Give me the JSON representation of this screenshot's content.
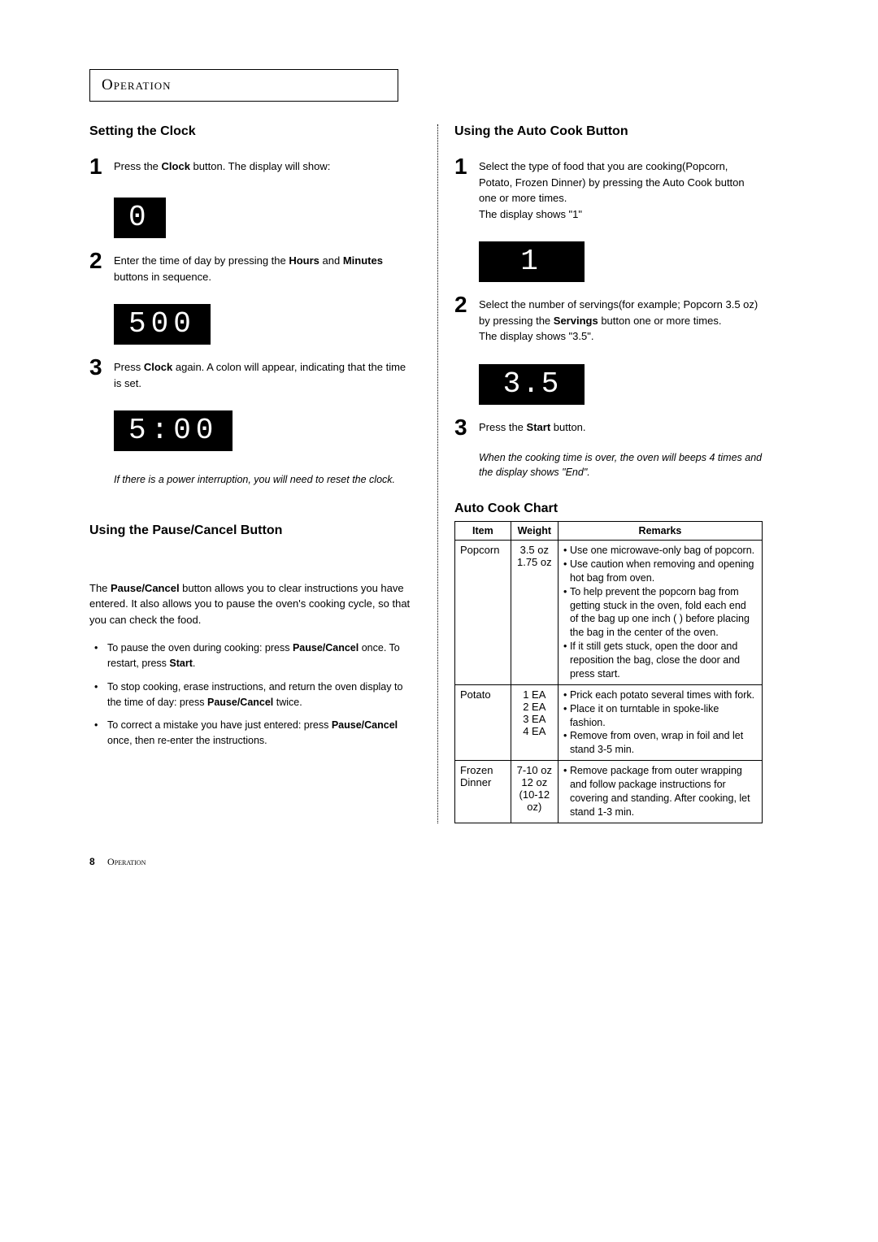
{
  "header": {
    "title": "Operation"
  },
  "left": {
    "clock_title": "Setting the Clock",
    "step1": {
      "pre": "Press the ",
      "bold": "Clock",
      "post": " button.  The display will show:"
    },
    "disp1": "0",
    "step2": {
      "pre": "Enter the time of day by pressing the ",
      "b1": "Hours",
      "mid": " and ",
      "b2": "Minutes",
      "post": " buttons in sequence."
    },
    "disp2": "500",
    "step3": {
      "pre": "Press ",
      "bold": "Clock",
      "post": " again. A colon will appear, indicating that the time is set."
    },
    "disp3": "5:00",
    "note": "If there is a power interruption, you will need to reset the clock.",
    "pause_title": "Using the Pause/Cancel Button",
    "pause_intro": {
      "pre": "The ",
      "bold": "Pause/Cancel",
      "post": " button allows you to clear instructions you have entered.  It also allows you to pause the oven's cooking cycle, so that you can check the food."
    },
    "pause_b1": {
      "pre": "To pause the oven during cooking: press ",
      "b1": "Pause/Cancel",
      "mid": " once.  To restart, press ",
      "b2": "Start",
      "post": "."
    },
    "pause_b2": {
      "pre": "To stop cooking, erase instructions, and return the oven display to the time of day: press ",
      "bold": "Pause/Cancel",
      "post": " twice."
    },
    "pause_b3": {
      "pre": "To correct a mistake you have just entered: press ",
      "bold": "Pause/Cancel",
      "post": " once, then re-enter the instructions."
    }
  },
  "right": {
    "auto_title": "Using the Auto Cook Button",
    "step1": "Select the type of food that you are cooking(Popcorn, Potato, Frozen Dinner) by pressing the Auto Cook button one or more times.",
    "step1b": "The display shows \"1\"",
    "disp1": "1",
    "step2": {
      "pre": "Select the number of servings(for example; Popcorn 3.5 oz) by pressing the ",
      "bold": "Servings",
      "post": " button one or more times."
    },
    "step2b": "The display shows \"3.5\".",
    "disp2": "3.5",
    "step3": {
      "pre": "Press the ",
      "bold": "Start",
      "post": " button."
    },
    "note": "When the cooking time is over, the oven will beeps 4 times and the display shows \"End\".",
    "chart_title": "Auto Cook Chart",
    "table": {
      "headers": [
        "Item",
        "Weight",
        "Remarks"
      ],
      "rows": [
        {
          "item": "Popcorn",
          "weight": "3.5 oz\n1.75 oz",
          "remarks": [
            "Use one microwave-only bag of popcorn.",
            "Use caution when removing and opening hot bag from oven.",
            "To help prevent the popcorn bag from getting stuck in the oven, fold each end of the bag up one inch (           ) before placing the bag in the center of the oven.",
            "If it still gets stuck, open the door and reposition the bag, close the door and press start."
          ]
        },
        {
          "item": "Potato",
          "weight": "1 EA\n2 EA\n3 EA\n4 EA",
          "remarks": [
            "Prick each potato several times with fork.",
            "Place it on turntable in spoke-like fashion.",
            "Remove from oven, wrap in foil and let stand 3-5 min."
          ]
        },
        {
          "item": "Frozen Dinner",
          "weight": "7-10 oz\n12 oz\n(10-12 oz)",
          "remarks": [
            "Remove package from outer wrapping and follow package instructions for covering and standing. After cooking, let stand 1-3 min."
          ]
        }
      ]
    }
  },
  "footer": {
    "page": "8",
    "label": "Operation"
  },
  "colors": {
    "bg": "#ffffff",
    "text": "#000000",
    "display_bg": "#000000",
    "display_fg": "#ffffff"
  }
}
